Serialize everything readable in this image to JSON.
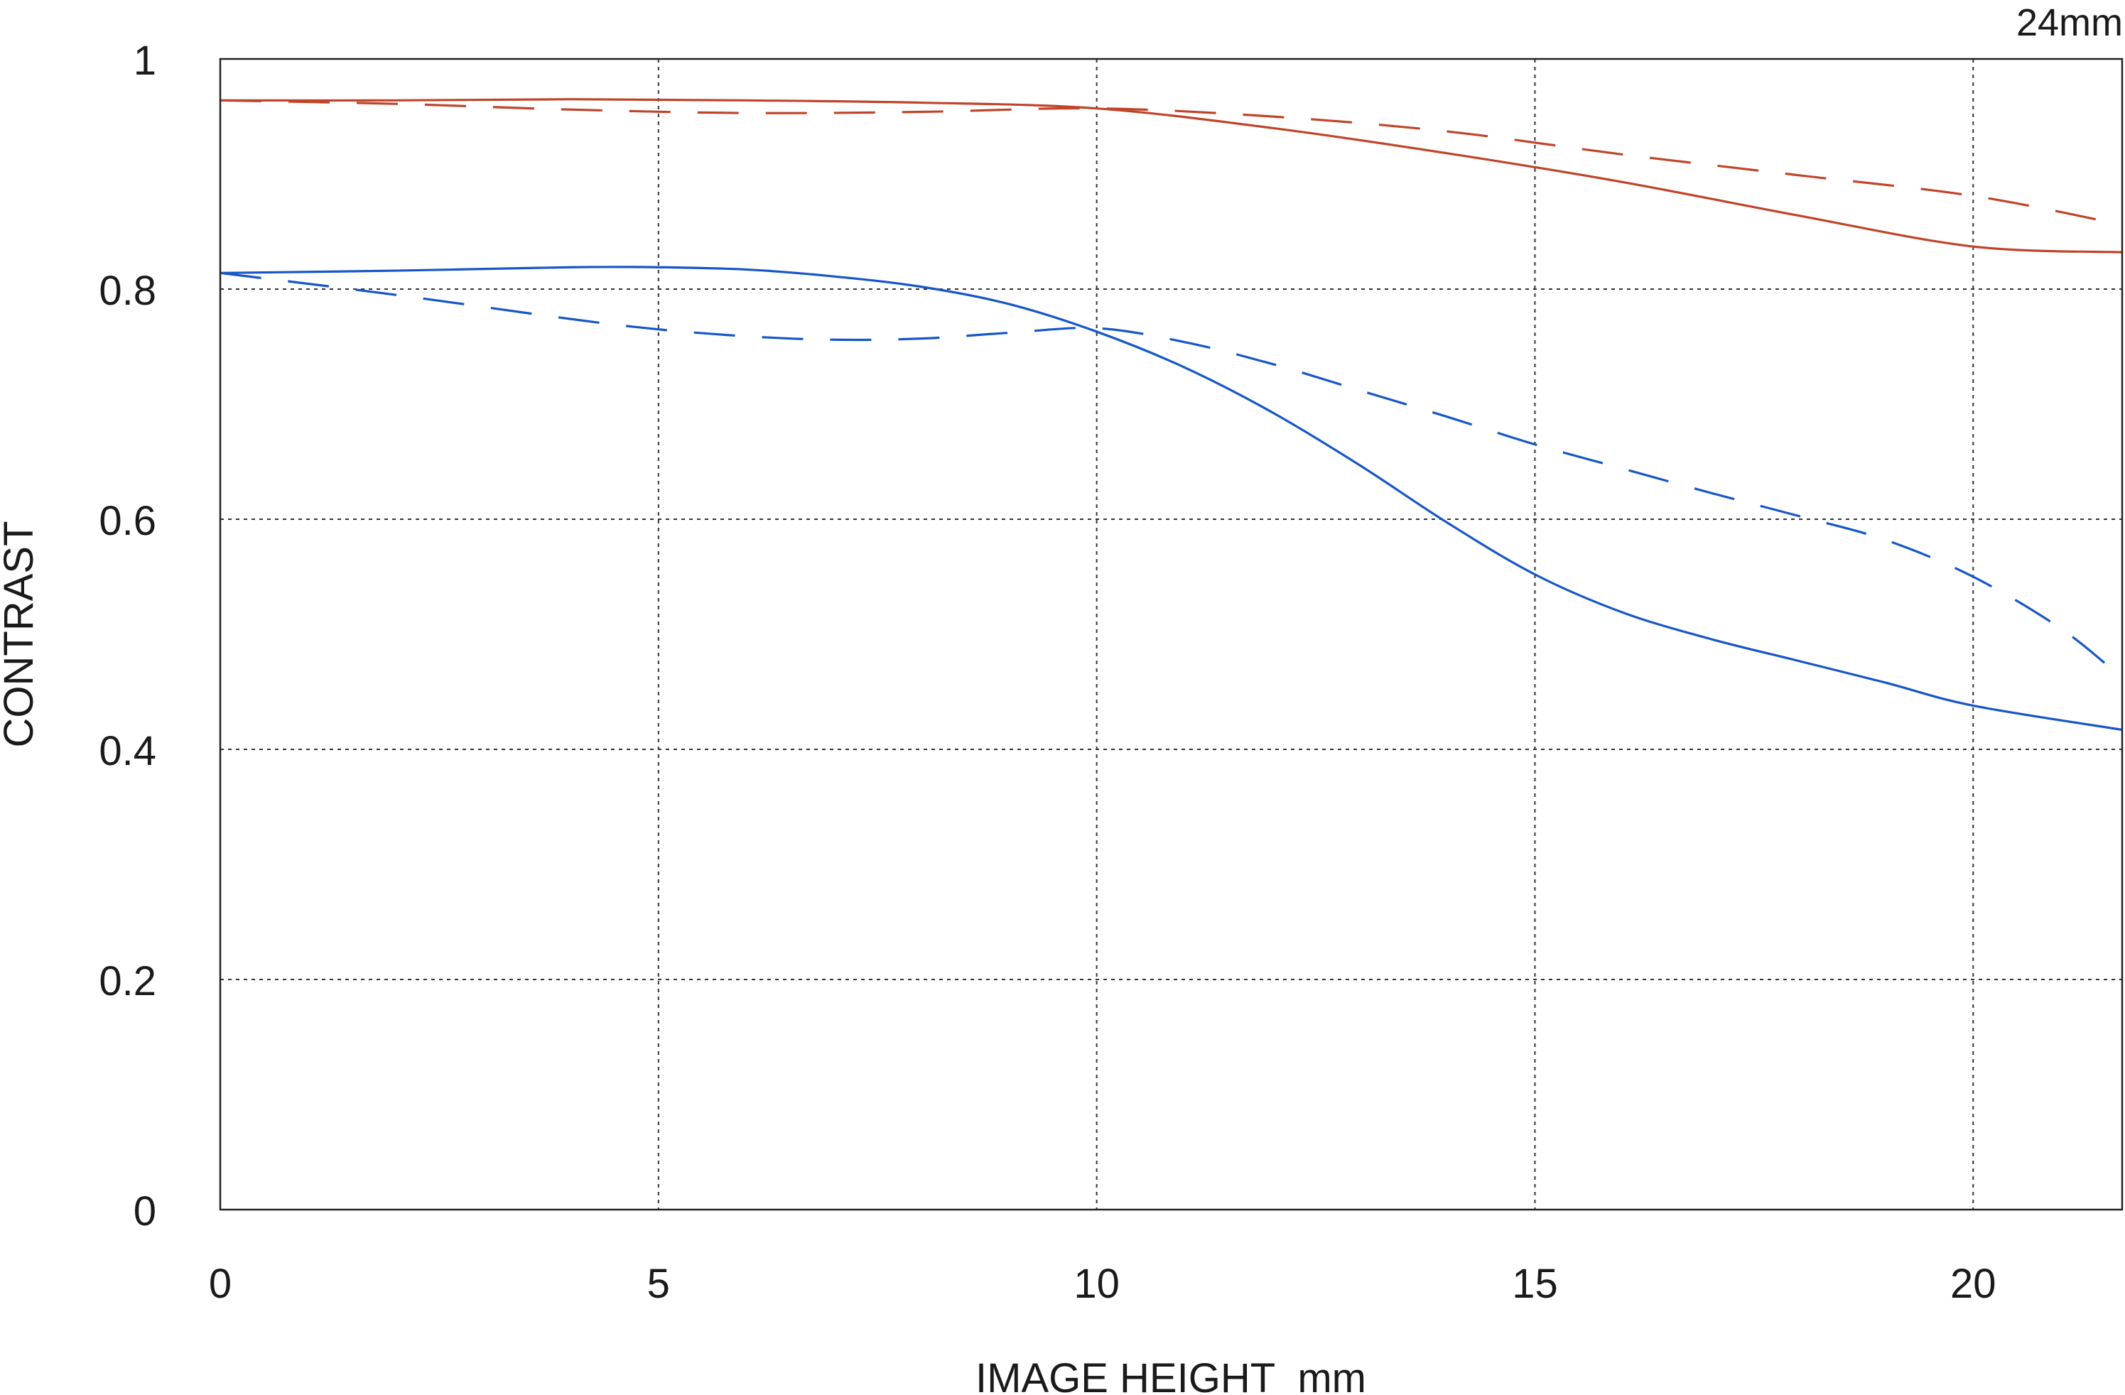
{
  "chart_data": {
    "type": "line",
    "title": "",
    "corner_label": "24mm",
    "xlabel": "IMAGE HEIGHT  mm",
    "ylabel": "CONTRAST",
    "xlim": [
      0,
      21.7
    ],
    "ylim": [
      0,
      1
    ],
    "x_ticks": [
      0,
      5,
      10,
      15,
      20
    ],
    "y_ticks": [
      0,
      0.2,
      0.4,
      0.6,
      0.8,
      1
    ],
    "x_tick_labels": [
      "0",
      "5",
      "10",
      "15",
      "20"
    ],
    "y_tick_labels": [
      "0",
      "0.2",
      "0.4",
      "0.6",
      "0.8",
      "1"
    ],
    "grid": true,
    "grid_style": "dotted",
    "series": [
      {
        "color": "#c0442a",
        "dash": false,
        "x": [
          0,
          2,
          4,
          6,
          8,
          10,
          12,
          14,
          16,
          18,
          20,
          21.7
        ],
        "y": [
          0.964,
          0.964,
          0.965,
          0.964,
          0.962,
          0.957,
          0.94,
          0.918,
          0.893,
          0.864,
          0.837,
          0.832
        ]
      },
      {
        "color": "#c0442a",
        "dash": true,
        "x": [
          0,
          2,
          4,
          6,
          8,
          10,
          12,
          14,
          16,
          18,
          20,
          21.7
        ],
        "y": [
          0.964,
          0.961,
          0.956,
          0.953,
          0.954,
          0.957,
          0.95,
          0.937,
          0.917,
          0.899,
          0.881,
          0.856
        ]
      },
      {
        "color": "#1556c8",
        "dash": false,
        "x": [
          0,
          2,
          4,
          5,
          6,
          7,
          8,
          9,
          10,
          11,
          12,
          13,
          14,
          15,
          16,
          17,
          18,
          19,
          20,
          21.7
        ],
        "y": [
          0.814,
          0.816,
          0.819,
          0.819,
          0.817,
          0.811,
          0.802,
          0.787,
          0.763,
          0.732,
          0.693,
          0.647,
          0.597,
          0.552,
          0.519,
          0.496,
          0.477,
          0.458,
          0.438,
          0.417
        ]
      },
      {
        "color": "#1556c8",
        "dash": true,
        "x": [
          0,
          2,
          4,
          5,
          6,
          7,
          8,
          9,
          10,
          11,
          12,
          13,
          14,
          15,
          16,
          17,
          18,
          19,
          20,
          21,
          21.7
        ],
        "y": [
          0.814,
          0.795,
          0.774,
          0.765,
          0.759,
          0.756,
          0.757,
          0.762,
          0.766,
          0.754,
          0.735,
          0.712,
          0.689,
          0.665,
          0.644,
          0.623,
          0.603,
          0.582,
          0.55,
          0.505,
          0.462
        ]
      }
    ]
  }
}
